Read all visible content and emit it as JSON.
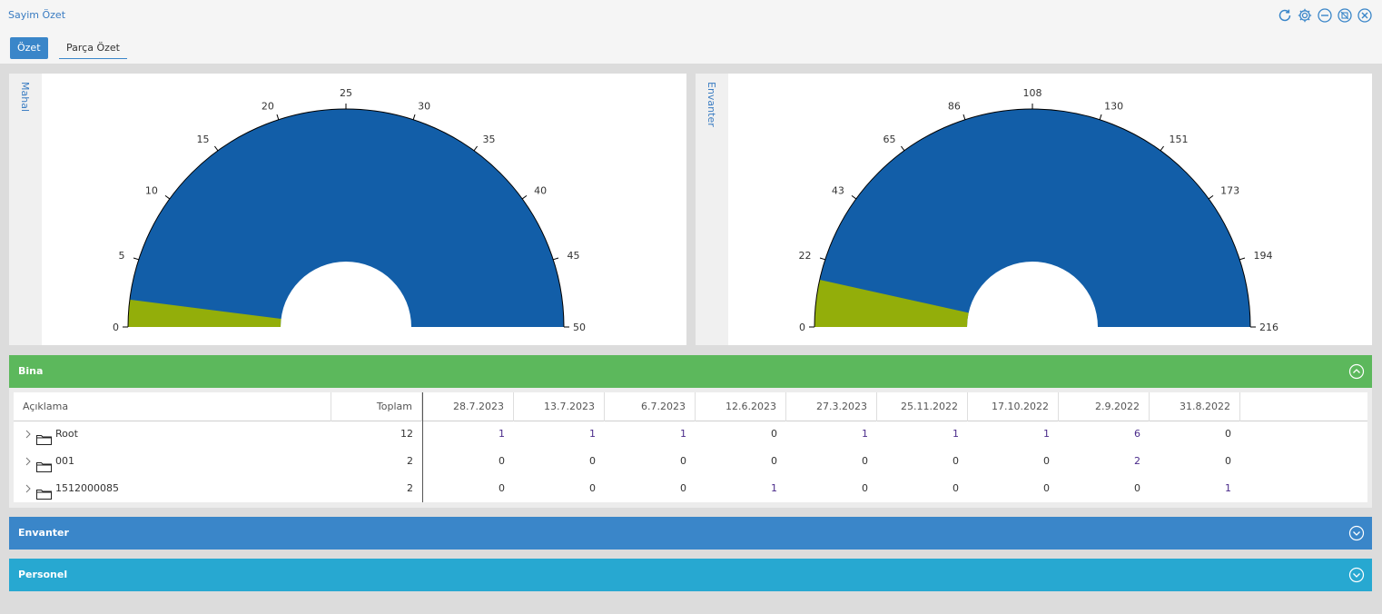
{
  "app": {
    "title": "Sayim Özet",
    "window_icons": [
      "refresh-icon",
      "gear-icon",
      "minimize-icon",
      "unpin-icon",
      "close-icon"
    ]
  },
  "tabs": [
    {
      "label": "Özet",
      "active": true
    },
    {
      "label": "Parça Özet",
      "active": false
    }
  ],
  "colors": {
    "accent": "#3a86c9",
    "gauge_primary": "#125ea8",
    "gauge_secondary": "#93ae0a",
    "section_bina": "#5cb85c",
    "section_envanter": "#3a86c9",
    "section_personel": "#27a8d1"
  },
  "gauges": [
    {
      "label": "Mahal",
      "chart_data": {
        "type": "gauge",
        "min": 0,
        "max": 50,
        "ticks": [
          "0",
          "5",
          "10",
          "15",
          "20",
          "25",
          "30",
          "35",
          "40",
          "45",
          "50"
        ],
        "total": 50,
        "value": 2
      }
    },
    {
      "label": "Envanter",
      "chart_data": {
        "type": "gauge",
        "min": 0,
        "max": 216,
        "ticks": [
          "0",
          "22",
          "43",
          "65",
          "86",
          "108",
          "130",
          "151",
          "173",
          "194",
          "216"
        ],
        "total": 216,
        "value": 15
      }
    }
  ],
  "sections": {
    "bina": {
      "title": "Bina",
      "expanded": true,
      "table": {
        "columns": [
          "Açıklama",
          "Toplam",
          "28.7.2023",
          "13.7.2023",
          "6.7.2023",
          "12.6.2023",
          "27.3.2023",
          "25.11.2022",
          "17.10.2022",
          "2.9.2022",
          "31.8.2022"
        ],
        "rows": [
          {
            "label": "Root",
            "total": "12",
            "values": [
              "1",
              "1",
              "1",
              "0",
              "1",
              "1",
              "1",
              "6",
              "0"
            ]
          },
          {
            "label": "001",
            "total": "2",
            "values": [
              "0",
              "0",
              "0",
              "0",
              "0",
              "0",
              "0",
              "2",
              "0"
            ]
          },
          {
            "label": "1512000085",
            "total": "2",
            "values": [
              "0",
              "0",
              "0",
              "1",
              "0",
              "0",
              "0",
              "0",
              "1"
            ]
          }
        ]
      }
    },
    "envanter": {
      "title": "Envanter",
      "expanded": false
    },
    "personel": {
      "title": "Personel",
      "expanded": false
    }
  }
}
